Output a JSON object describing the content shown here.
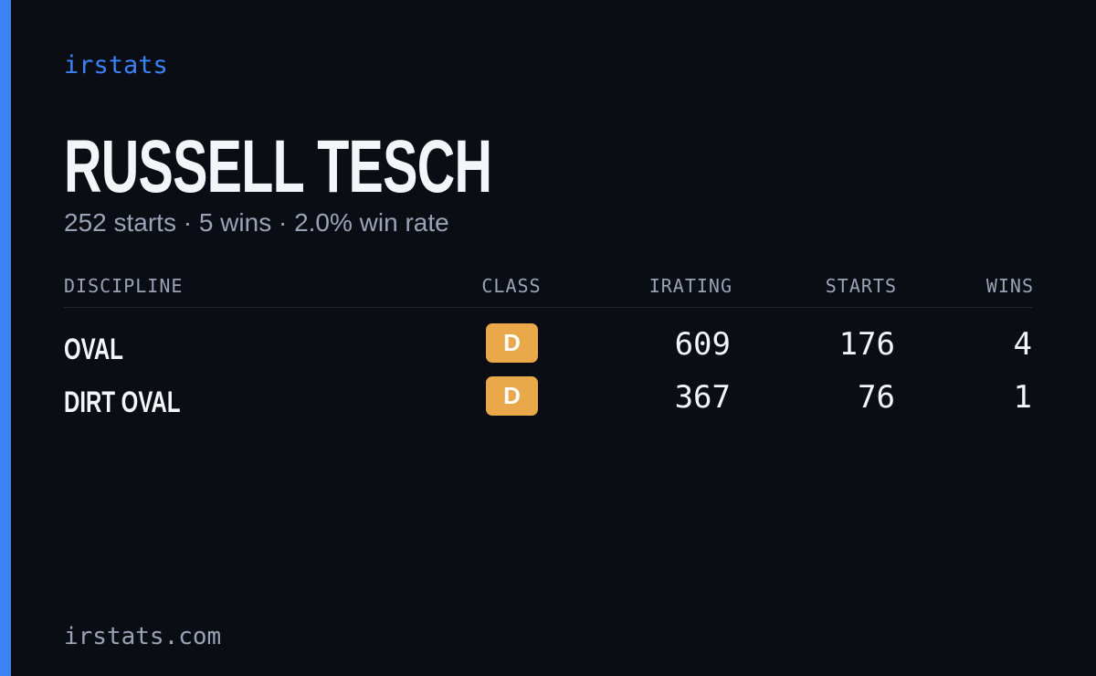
{
  "header": {
    "brand": "irstats",
    "name": "RUSSELL TESCH",
    "summary": "252 starts · 5 wins · 2.0% win rate"
  },
  "table": {
    "columns": [
      "DISCIPLINE",
      "CLASS",
      "IRATING",
      "STARTS",
      "WINS"
    ],
    "rows": [
      [
        "OVAL",
        "D",
        609,
        176,
        4
      ],
      [
        "DIRT OVAL",
        "D",
        367,
        76,
        1
      ]
    ]
  },
  "footer": {
    "url": "irstats.com"
  }
}
